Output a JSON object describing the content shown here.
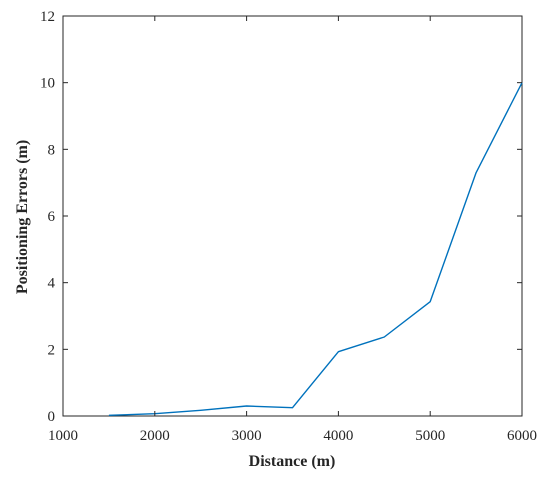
{
  "chart_data": {
    "type": "line",
    "xlabel": "Distance (m)",
    "ylabel": "Positioning Errors (m)",
    "xlim": [
      1000,
      6000
    ],
    "ylim": [
      0,
      12
    ],
    "xticks": [
      1000,
      2000,
      3000,
      4000,
      5000,
      6000
    ],
    "yticks": [
      0,
      2,
      4,
      6,
      8,
      10,
      12
    ],
    "xtick_labels": [
      "1000",
      "2000",
      "3000",
      "4000",
      "5000",
      "6000"
    ],
    "ytick_labels": [
      "0",
      "2",
      "4",
      "6",
      "8",
      "10",
      "12"
    ],
    "grid": false,
    "box": true,
    "series": [
      {
        "color": "#0072bd",
        "x": [
          1500,
          2000,
          2500,
          3000,
          3500,
          4000,
          4500,
          5000,
          5500,
          6000
        ],
        "y": [
          0.02,
          0.07,
          0.17,
          0.3,
          0.25,
          1.93,
          2.37,
          3.43,
          7.3,
          10.0
        ]
      }
    ]
  }
}
